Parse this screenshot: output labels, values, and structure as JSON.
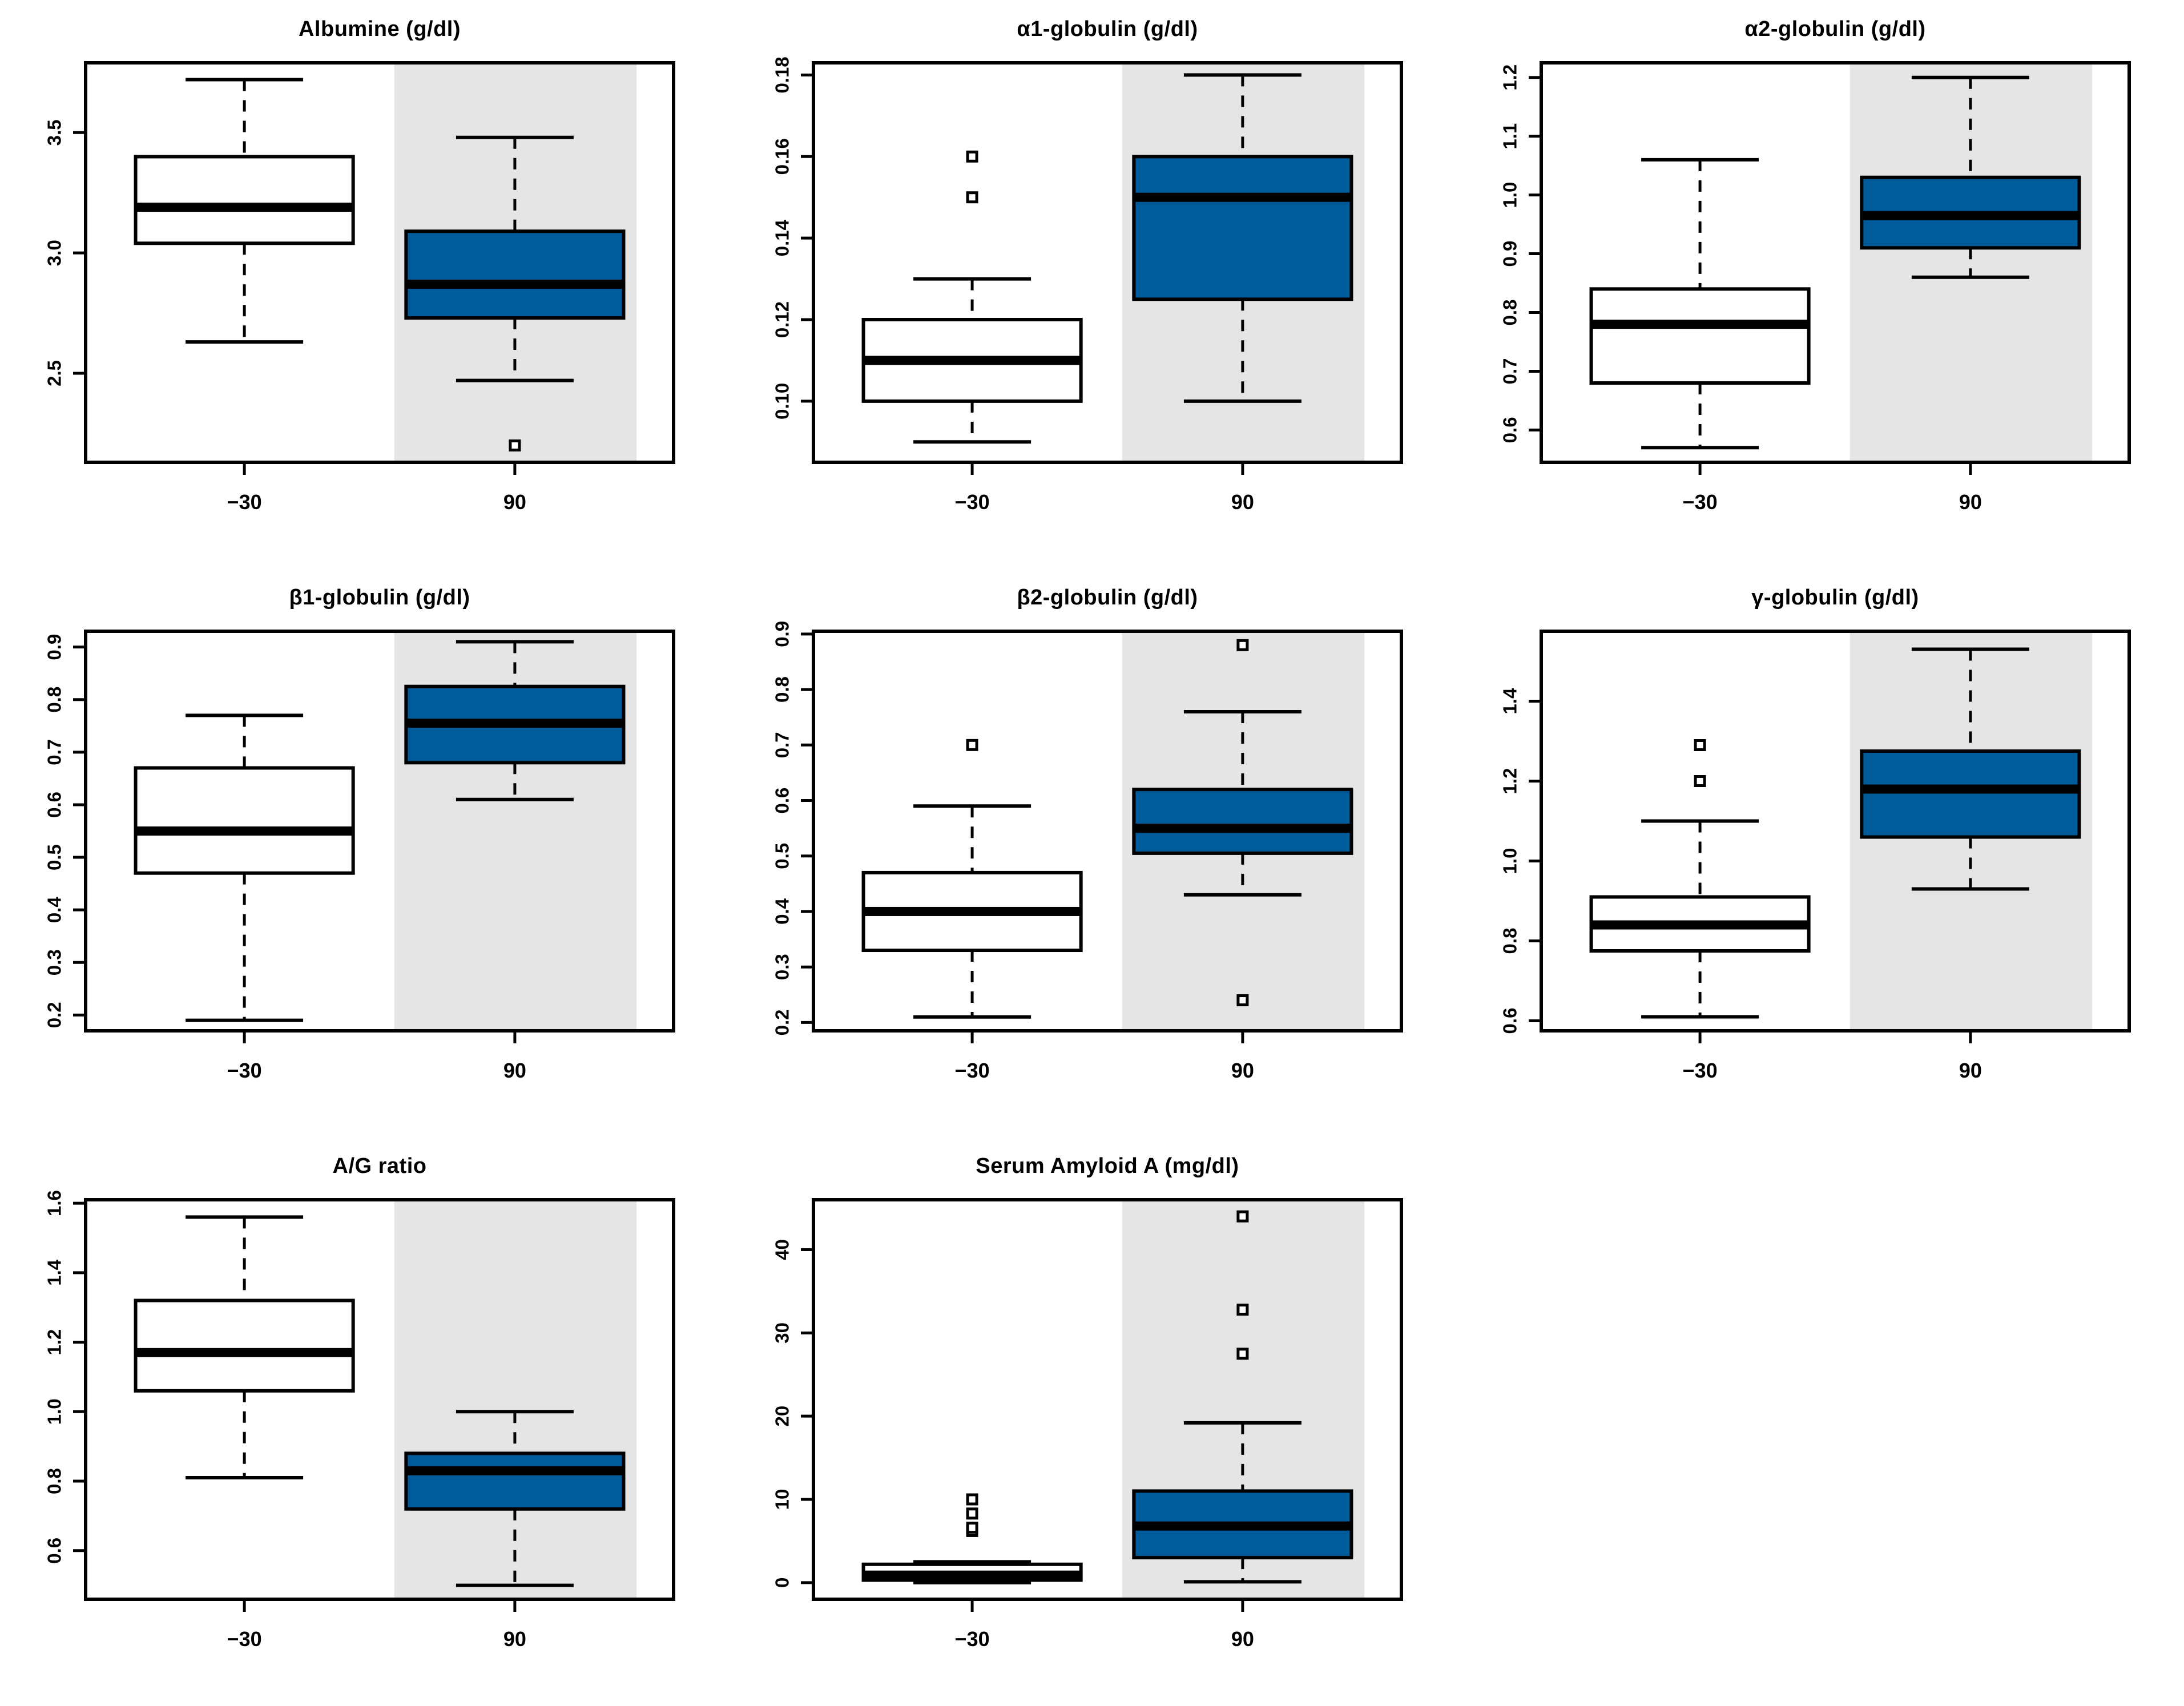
{
  "figure": {
    "layout": "3x3-grid-8-panels",
    "x_axis_categories": [
      "−30",
      "90"
    ]
  },
  "colors": {
    "treated_fill": "#005B9A",
    "control_fill": "#FFFFFF",
    "shaded_band": "#E5E5E5",
    "stroke": "#000000",
    "background": "#FFFFFF"
  },
  "chart_data": [
    {
      "type": "boxplot",
      "title": "Albumine (g/dl)",
      "categories": [
        "−30",
        "90"
      ],
      "ylim": [
        2.13,
        3.79
      ],
      "yticks": [
        "2.5",
        "3.0",
        "3.5"
      ],
      "shaded_category": "90",
      "series": [
        {
          "name": "−30",
          "fill": "#FFFFFF",
          "whisker_low": 2.63,
          "q1": 3.04,
          "median": 3.19,
          "q3": 3.4,
          "whisker_high": 3.72,
          "outliers": []
        },
        {
          "name": "90",
          "fill": "#005B9A",
          "whisker_low": 2.47,
          "q1": 2.73,
          "median": 2.87,
          "q3": 3.09,
          "whisker_high": 3.48,
          "outliers": [
            2.2
          ]
        }
      ]
    },
    {
      "type": "boxplot",
      "title": "α1-globulin (g/dl)",
      "categories": [
        "−30",
        "90"
      ],
      "ylim": [
        0.085,
        0.183
      ],
      "yticks": [
        "0.10",
        "0.12",
        "0.14",
        "0.16",
        "0.18"
      ],
      "shaded_category": "90",
      "series": [
        {
          "name": "−30",
          "fill": "#FFFFFF",
          "whisker_low": 0.09,
          "q1": 0.1,
          "median": 0.11,
          "q3": 0.12,
          "whisker_high": 0.13,
          "outliers": [
            0.15,
            0.16
          ]
        },
        {
          "name": "90",
          "fill": "#005B9A",
          "whisker_low": 0.1,
          "q1": 0.125,
          "median": 0.15,
          "q3": 0.16,
          "whisker_high": 0.18,
          "outliers": []
        }
      ]
    },
    {
      "type": "boxplot",
      "title": "α2-globulin (g/dl)",
      "categories": [
        "−30",
        "90"
      ],
      "ylim": [
        0.545,
        1.225
      ],
      "yticks": [
        "0.6",
        "0.7",
        "0.8",
        "0.9",
        "1.0",
        "1.1",
        "1.2"
      ],
      "shaded_category": "90",
      "series": [
        {
          "name": "−30",
          "fill": "#FFFFFF",
          "whisker_low": 0.57,
          "q1": 0.68,
          "median": 0.78,
          "q3": 0.84,
          "whisker_high": 1.06,
          "outliers": []
        },
        {
          "name": "90",
          "fill": "#005B9A",
          "whisker_low": 0.86,
          "q1": 0.91,
          "median": 0.965,
          "q3": 1.03,
          "whisker_high": 1.2,
          "outliers": []
        }
      ]
    },
    {
      "type": "boxplot",
      "title": "β1-globulin (g/dl)",
      "categories": [
        "−30",
        "90"
      ],
      "ylim": [
        0.17,
        0.93
      ],
      "yticks": [
        "0.2",
        "0.3",
        "0.4",
        "0.5",
        "0.6",
        "0.7",
        "0.8",
        "0.9"
      ],
      "shaded_category": "90",
      "series": [
        {
          "name": "−30",
          "fill": "#FFFFFF",
          "whisker_low": 0.19,
          "q1": 0.47,
          "median": 0.55,
          "q3": 0.67,
          "whisker_high": 0.77,
          "outliers": []
        },
        {
          "name": "90",
          "fill": "#005B9A",
          "whisker_low": 0.61,
          "q1": 0.68,
          "median": 0.755,
          "q3": 0.825,
          "whisker_high": 0.91,
          "outliers": []
        }
      ]
    },
    {
      "type": "boxplot",
      "title": "β2-globulin (g/dl)",
      "categories": [
        "−30",
        "90"
      ],
      "ylim": [
        0.185,
        0.905
      ],
      "yticks": [
        "0.2",
        "0.3",
        "0.4",
        "0.5",
        "0.6",
        "0.7",
        "0.8",
        "0.9"
      ],
      "shaded_category": "90",
      "series": [
        {
          "name": "−30",
          "fill": "#FFFFFF",
          "whisker_low": 0.21,
          "q1": 0.33,
          "median": 0.4,
          "q3": 0.47,
          "whisker_high": 0.59,
          "outliers": [
            0.7
          ]
        },
        {
          "name": "90",
          "fill": "#005B9A",
          "whisker_low": 0.43,
          "q1": 0.505,
          "median": 0.55,
          "q3": 0.62,
          "whisker_high": 0.76,
          "outliers": [
            0.88,
            0.24
          ]
        }
      ]
    },
    {
      "type": "boxplot",
      "title": "γ-globulin (g/dl)",
      "categories": [
        "−30",
        "90"
      ],
      "ylim": [
        0.575,
        1.575
      ],
      "yticks": [
        "0.6",
        "0.8",
        "1.0",
        "1.2",
        "1.4"
      ],
      "shaded_category": "90",
      "series": [
        {
          "name": "−30",
          "fill": "#FFFFFF",
          "whisker_low": 0.61,
          "q1": 0.775,
          "median": 0.84,
          "q3": 0.91,
          "whisker_high": 1.1,
          "outliers": [
            1.2,
            1.29
          ]
        },
        {
          "name": "90",
          "fill": "#005B9A",
          "whisker_low": 0.93,
          "q1": 1.06,
          "median": 1.18,
          "q3": 1.275,
          "whisker_high": 1.53,
          "outliers": []
        }
      ]
    },
    {
      "type": "boxplot",
      "title": "A/G ratio",
      "categories": [
        "−30",
        "90"
      ],
      "ylim": [
        0.46,
        1.61
      ],
      "yticks": [
        "0.6",
        "0.8",
        "1.0",
        "1.2",
        "1.4",
        "1.6"
      ],
      "shaded_category": "90",
      "series": [
        {
          "name": "−30",
          "fill": "#FFFFFF",
          "whisker_low": 0.81,
          "q1": 1.06,
          "median": 1.17,
          "q3": 1.32,
          "whisker_high": 1.56,
          "outliers": []
        },
        {
          "name": "90",
          "fill": "#005B9A",
          "whisker_low": 0.5,
          "q1": 0.72,
          "median": 0.83,
          "q3": 0.88,
          "whisker_high": 1.0,
          "outliers": []
        }
      ]
    },
    {
      "type": "boxplot",
      "title": "Serum Amyloid A (mg/dl)",
      "categories": [
        "−30",
        "90"
      ],
      "ylim": [
        -2.0,
        46.0
      ],
      "yticks": [
        "0",
        "10",
        "20",
        "30",
        "40"
      ],
      "shaded_category": "90",
      "series": [
        {
          "name": "−30",
          "fill": "#FFFFFF",
          "whisker_low": 0.0,
          "q1": 0.3,
          "median": 0.9,
          "q3": 2.2,
          "whisker_high": 2.5,
          "outliers": [
            6.2,
            6.6,
            8.3,
            10.0
          ]
        },
        {
          "name": "90",
          "fill": "#005B9A",
          "whisker_low": 0.1,
          "q1": 3.0,
          "median": 6.8,
          "q3": 11.0,
          "whisker_high": 19.2,
          "outliers": [
            27.5,
            32.8,
            44.0
          ]
        }
      ]
    }
  ]
}
